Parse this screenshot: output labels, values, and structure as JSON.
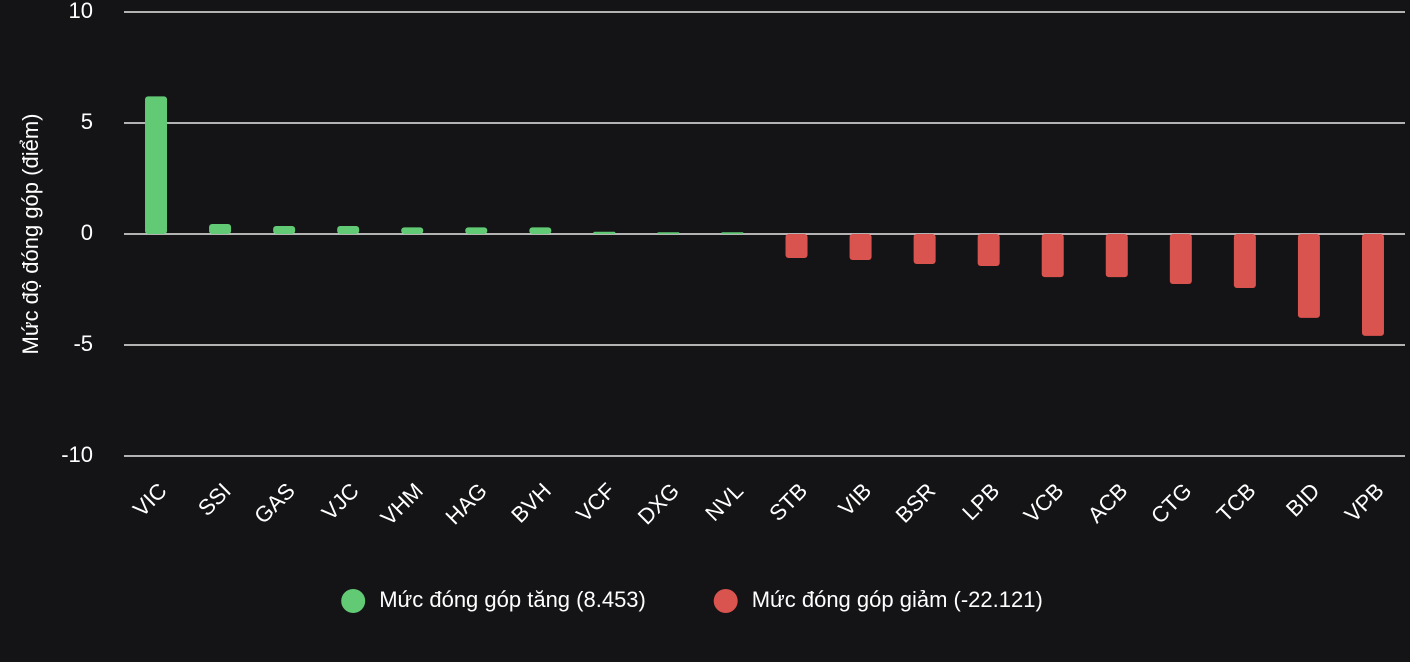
{
  "chart_data": {
    "type": "bar",
    "y_label": "Mức độ đóng góp (điểm)",
    "categories": [
      "VIC",
      "SSI",
      "GAS",
      "VJC",
      "VHM",
      "HAG",
      "BVH",
      "VCF",
      "DXG",
      "NVL",
      "STB",
      "VIB",
      "BSR",
      "LPB",
      "VCB",
      "ACB",
      "CTG",
      "TCB",
      "BID",
      "VPB"
    ],
    "series": [
      {
        "name": "Mức đóng góp tăng (8.453)",
        "color": "#62c975",
        "values": [
          6.2,
          0.45,
          0.36,
          0.36,
          0.3,
          0.3,
          0.3,
          0.1,
          0.08,
          0.08,
          null,
          null,
          null,
          null,
          null,
          null,
          null,
          null,
          null,
          null
        ]
      },
      {
        "name": "Mức đóng góp giảm (-22.121)",
        "color": "#d9534f",
        "values": [
          null,
          null,
          null,
          null,
          null,
          null,
          null,
          null,
          null,
          null,
          -1.08,
          -1.17,
          -1.35,
          -1.44,
          -1.94,
          -1.94,
          -2.25,
          -2.43,
          -3.78,
          -4.59
        ]
      }
    ],
    "ylim": [
      -10,
      10
    ],
    "yticks": [
      -10,
      -5,
      0,
      5,
      10
    ],
    "grid": true,
    "legend": "bottom"
  }
}
